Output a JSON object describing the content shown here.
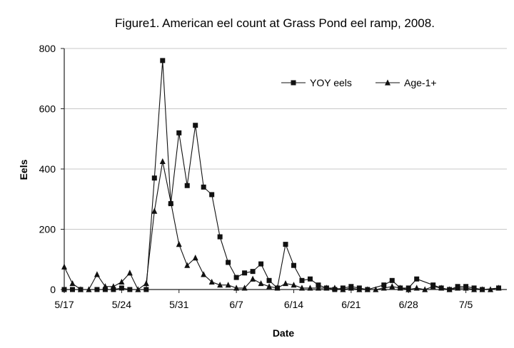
{
  "chart_data": {
    "type": "line",
    "title": "Figure1.  American eel count at Grass Pond eel ramp, 2008.",
    "xlabel": "Date",
    "ylabel": "Eels",
    "ylim": [
      0,
      800
    ],
    "yticks": [
      "0",
      "200",
      "400",
      "600",
      "800"
    ],
    "xlim": [
      "2008-05-17",
      "2008-07-10"
    ],
    "xticks": [
      {
        "label": "5/17",
        "date": "2008-05-17"
      },
      {
        "label": "5/24",
        "date": "2008-05-24"
      },
      {
        "label": "5/31",
        "date": "2008-05-31"
      },
      {
        "label": "6/7",
        "date": "2008-06-07"
      },
      {
        "label": "6/14",
        "date": "2008-06-14"
      },
      {
        "label": "6/21",
        "date": "2008-06-21"
      },
      {
        "label": "6/28",
        "date": "2008-06-28"
      },
      {
        "label": "7/5",
        "date": "2008-07-05"
      }
    ],
    "grid": "horizontal",
    "legend": "top-right",
    "series": [
      {
        "name": "YOY eels",
        "marker": "square",
        "points": [
          [
            "2008-05-17",
            0
          ],
          [
            "2008-05-18",
            0
          ],
          [
            "2008-05-19",
            0
          ],
          [
            "2008-05-21",
            0
          ],
          [
            "2008-05-22",
            0
          ],
          [
            "2008-05-23",
            0
          ],
          [
            "2008-05-24",
            5
          ],
          [
            "2008-05-25",
            0
          ],
          [
            "2008-05-27",
            0
          ],
          [
            "2008-05-28",
            370
          ],
          [
            "2008-05-29",
            760
          ],
          [
            "2008-05-30",
            285
          ],
          [
            "2008-05-31",
            520
          ],
          [
            "2008-06-01",
            345
          ],
          [
            "2008-06-02",
            545
          ],
          [
            "2008-06-03",
            340
          ],
          [
            "2008-06-04",
            315
          ],
          [
            "2008-06-05",
            175
          ],
          [
            "2008-06-06",
            90
          ],
          [
            "2008-06-07",
            40
          ],
          [
            "2008-06-08",
            55
          ],
          [
            "2008-06-09",
            60
          ],
          [
            "2008-06-10",
            85
          ],
          [
            "2008-06-11",
            30
          ],
          [
            "2008-06-12",
            5
          ],
          [
            "2008-06-13",
            150
          ],
          [
            "2008-06-14",
            80
          ],
          [
            "2008-06-15",
            30
          ],
          [
            "2008-06-16",
            35
          ],
          [
            "2008-06-17",
            15
          ],
          [
            "2008-06-18",
            5
          ],
          [
            "2008-06-19",
            0
          ],
          [
            "2008-06-20",
            5
          ],
          [
            "2008-06-21",
            10
          ],
          [
            "2008-06-22",
            5
          ],
          [
            "2008-06-23",
            0
          ],
          [
            "2008-06-25",
            15
          ],
          [
            "2008-06-26",
            30
          ],
          [
            "2008-06-27",
            5
          ],
          [
            "2008-06-28",
            5
          ],
          [
            "2008-06-29",
            35
          ],
          [
            "2008-07-01",
            15
          ],
          [
            "2008-07-02",
            5
          ],
          [
            "2008-07-03",
            0
          ],
          [
            "2008-07-04",
            10
          ],
          [
            "2008-07-05",
            10
          ],
          [
            "2008-07-06",
            5
          ],
          [
            "2008-07-07",
            0
          ],
          [
            "2008-07-09",
            5
          ]
        ]
      },
      {
        "name": "Age-1+",
        "marker": "triangle",
        "points": [
          [
            "2008-05-17",
            75
          ],
          [
            "2008-05-18",
            20
          ],
          [
            "2008-05-19",
            0
          ],
          [
            "2008-05-20",
            0
          ],
          [
            "2008-05-21",
            50
          ],
          [
            "2008-05-22",
            10
          ],
          [
            "2008-05-23",
            10
          ],
          [
            "2008-05-24",
            25
          ],
          [
            "2008-05-25",
            55
          ],
          [
            "2008-05-26",
            0
          ],
          [
            "2008-05-27",
            20
          ],
          [
            "2008-05-28",
            260
          ],
          [
            "2008-05-29",
            425
          ],
          [
            "2008-05-30",
            290
          ],
          [
            "2008-05-31",
            150
          ],
          [
            "2008-06-01",
            80
          ],
          [
            "2008-06-02",
            105
          ],
          [
            "2008-06-03",
            50
          ],
          [
            "2008-06-04",
            25
          ],
          [
            "2008-06-05",
            15
          ],
          [
            "2008-06-06",
            15
          ],
          [
            "2008-06-07",
            5
          ],
          [
            "2008-06-08",
            5
          ],
          [
            "2008-06-09",
            35
          ],
          [
            "2008-06-10",
            20
          ],
          [
            "2008-06-11",
            10
          ],
          [
            "2008-06-12",
            5
          ],
          [
            "2008-06-13",
            20
          ],
          [
            "2008-06-14",
            15
          ],
          [
            "2008-06-15",
            5
          ],
          [
            "2008-06-16",
            5
          ],
          [
            "2008-06-17",
            5
          ],
          [
            "2008-06-18",
            5
          ],
          [
            "2008-06-19",
            5
          ],
          [
            "2008-06-20",
            0
          ],
          [
            "2008-06-21",
            5
          ],
          [
            "2008-06-22",
            0
          ],
          [
            "2008-06-23",
            0
          ],
          [
            "2008-06-24",
            0
          ],
          [
            "2008-06-25",
            5
          ],
          [
            "2008-06-26",
            10
          ],
          [
            "2008-06-27",
            5
          ],
          [
            "2008-06-28",
            0
          ],
          [
            "2008-06-29",
            5
          ],
          [
            "2008-06-30",
            0
          ],
          [
            "2008-07-01",
            10
          ],
          [
            "2008-07-02",
            5
          ],
          [
            "2008-07-03",
            0
          ],
          [
            "2008-07-04",
            5
          ],
          [
            "2008-07-05",
            5
          ],
          [
            "2008-07-06",
            0
          ],
          [
            "2008-07-07",
            0
          ],
          [
            "2008-07-08",
            0
          ],
          [
            "2008-07-09",
            5
          ]
        ]
      }
    ]
  }
}
